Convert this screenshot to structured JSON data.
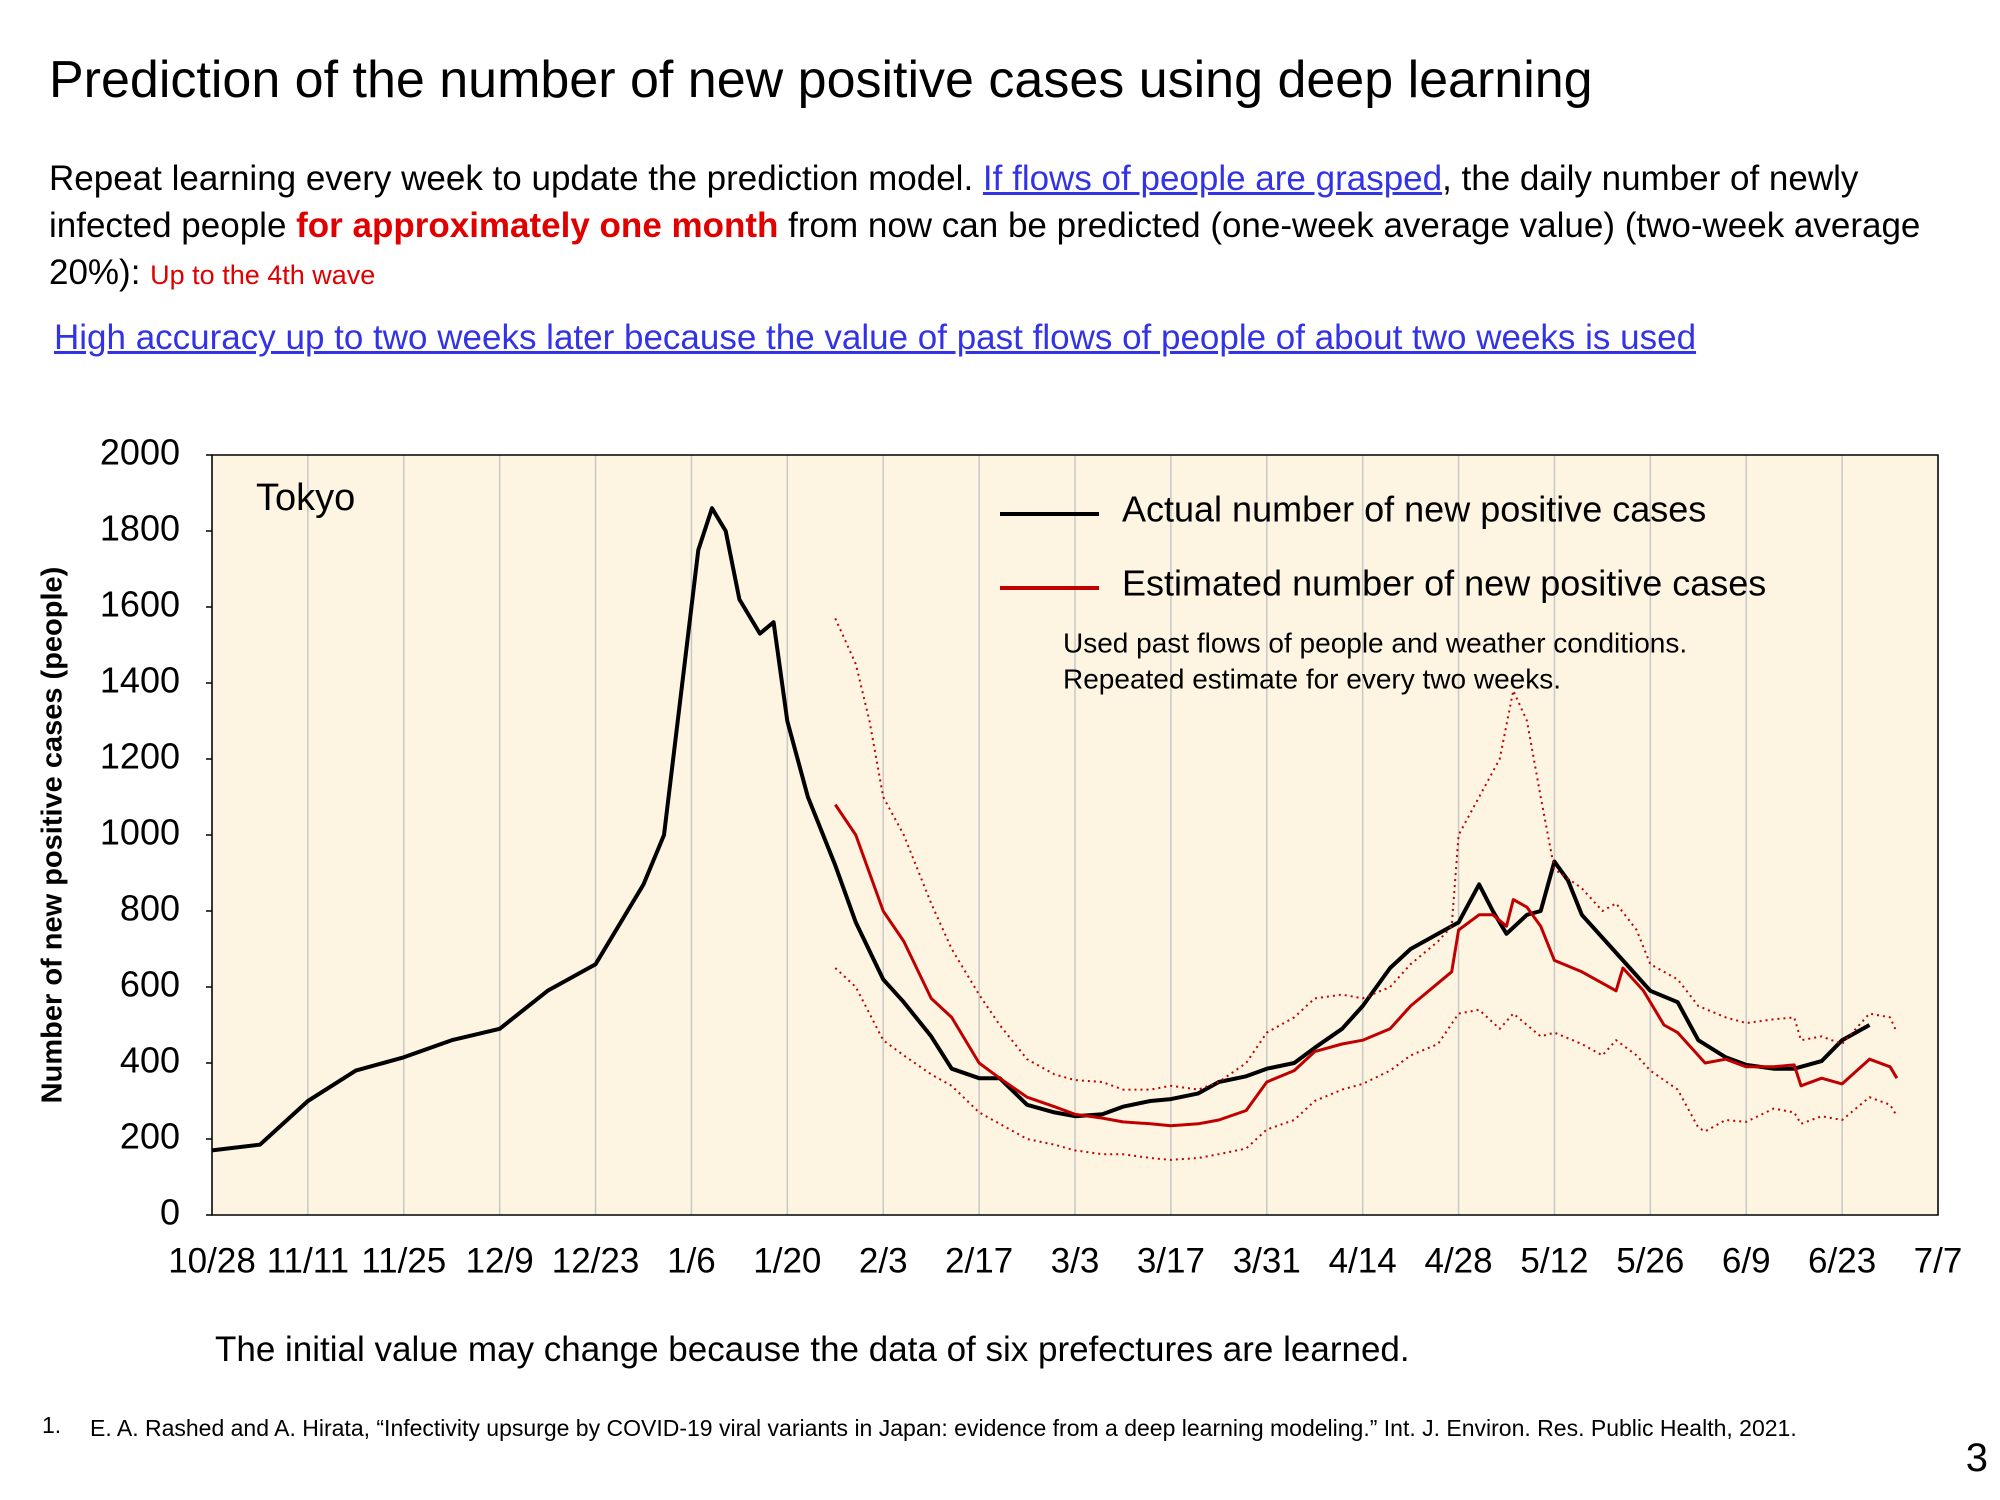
{
  "title": "Prediction of the number of new positive cases using deep learning",
  "intro": [
    "Repeat learning every week to update the prediction model. ",
    "If flows of people are grasped",
    ", the daily number of newly infected people ",
    "for approximately one month",
    " from now can be predicted (one-week average value) (two-week average 20%): ",
    "Up to the 4th wave"
  ],
  "link": "High accuracy up to two weeks later because the value of past flows of people of about two weeks is used",
  "caption": "The initial value may change because the data of six prefectures are learned.",
  "footnote": {
    "number": "1.",
    "text": "E. A. Rashed and A. Hirata, “Infectivity upsurge by COVID-19 viral variants in Japan: evidence from a deep learning modeling.” Int. J. Environ. Res. Public Health, 2021."
  },
  "page_number": "3",
  "chart_data": {
    "type": "line",
    "ylabel": "Number of new positive cases (people)",
    "annotations": [
      "Tokyo",
      "Used past flows of people and weather conditions.",
      "Repeated estimate for every two weeks."
    ],
    "xticks": [
      "10/28",
      "11/11",
      "11/25",
      "12/9",
      "12/23",
      "1/6",
      "1/20",
      "2/3",
      "2/17",
      "3/3",
      "3/17",
      "3/31",
      "4/14",
      "4/28",
      "5/12",
      "5/26",
      "6/9",
      "6/23",
      "7/7"
    ],
    "xlim": [
      "10/28",
      "7/7"
    ],
    "ylim": [
      0,
      2000
    ],
    "yticks": [
      0,
      200,
      400,
      600,
      800,
      1000,
      1200,
      1400,
      1600,
      1800,
      2000
    ],
    "grid": "x",
    "background": "#fdf5e1",
    "series": [
      {
        "name": "Actual number of new positive cases",
        "color": "#000000",
        "style": "solid",
        "x": [
          "10/28",
          "11/4",
          "11/11",
          "11/18",
          "11/25",
          "12/2",
          "12/9",
          "12/16",
          "12/23",
          "12/30",
          "1/2",
          "1/5",
          "1/7",
          "1/9",
          "1/11",
          "1/13",
          "1/16",
          "1/18",
          "1/20",
          "1/23",
          "1/27",
          "1/30",
          "2/3",
          "2/6",
          "2/10",
          "2/13",
          "2/17",
          "2/20",
          "2/24",
          "2/28",
          "3/3",
          "3/7",
          "3/10",
          "3/14",
          "3/17",
          "3/21",
          "3/24",
          "3/28",
          "3/31",
          "4/4",
          "4/7",
          "4/11",
          "4/14",
          "4/18",
          "4/21",
          "4/25",
          "4/28",
          "5/1",
          "5/3",
          "5/5",
          "5/8",
          "5/10",
          "5/12",
          "5/14",
          "5/16",
          "5/19",
          "5/23",
          "5/26",
          "5/30",
          "6/2",
          "6/6",
          "6/9",
          "6/13",
          "6/16",
          "6/20",
          "6/23",
          "6/27"
        ],
        "values": [
          170,
          185,
          300,
          380,
          415,
          460,
          490,
          590,
          660,
          870,
          1000,
          1450,
          1750,
          1860,
          1800,
          1620,
          1530,
          1560,
          1300,
          1100,
          920,
          770,
          620,
          560,
          470,
          385,
          360,
          360,
          290,
          270,
          260,
          265,
          285,
          300,
          305,
          320,
          350,
          365,
          385,
          400,
          440,
          490,
          550,
          650,
          700,
          740,
          770,
          870,
          800,
          740,
          790,
          800,
          930,
          880,
          790,
          730,
          650,
          590,
          560,
          460,
          415,
          395,
          385,
          385,
          405,
          460,
          500
        ]
      },
      {
        "name": "Estimated number of new positive cases",
        "color": "#c00000",
        "style": "solid",
        "x": [
          "1/27",
          "1/30",
          "2/3",
          "2/6",
          "2/10",
          "2/13",
          "2/17",
          "2/20",
          "2/24",
          "2/28",
          "3/3",
          "3/7",
          "3/10",
          "3/14",
          "3/17",
          "3/21",
          "3/24",
          "3/28",
          "3/31",
          "4/4",
          "4/7",
          "4/11",
          "4/14",
          "4/18",
          "4/21",
          "4/25",
          "4/27",
          "4/28",
          "5/1",
          "5/3",
          "5/5",
          "5/6",
          "5/8",
          "5/10",
          "5/12",
          "5/16",
          "5/19",
          "5/21",
          "5/22",
          "5/25",
          "5/28",
          "5/30",
          "6/3",
          "6/6",
          "6/9",
          "6/13",
          "6/16",
          "6/17",
          "6/20",
          "6/23",
          "6/27",
          "6/30",
          "7/1"
        ],
        "values": [
          1080,
          1000,
          800,
          720,
          570,
          520,
          400,
          360,
          310,
          285,
          265,
          255,
          245,
          240,
          235,
          240,
          250,
          275,
          350,
          380,
          430,
          450,
          460,
          490,
          550,
          610,
          640,
          750,
          790,
          790,
          760,
          830,
          810,
          760,
          670,
          640,
          610,
          590,
          650,
          590,
          500,
          480,
          400,
          410,
          390,
          390,
          395,
          340,
          360,
          345,
          410,
          390,
          360
        ]
      },
      {
        "color": "#c00000",
        "style": "dotted",
        "x": [
          "1/27",
          "1/30",
          "2/1",
          "2/3",
          "2/6",
          "2/10",
          "2/13",
          "2/17",
          "2/20",
          "2/24",
          "2/28",
          "3/3",
          "3/7",
          "3/10",
          "3/14",
          "3/17",
          "3/21",
          "3/24",
          "3/28",
          "3/31",
          "4/4",
          "4/7",
          "4/11",
          "4/14",
          "4/18",
          "4/21",
          "4/25",
          "4/27",
          "4/28",
          "5/1",
          "5/4",
          "5/6",
          "5/8",
          "5/10",
          "5/12",
          "5/16",
          "5/19",
          "5/21",
          "5/24",
          "5/26",
          "5/30",
          "6/2",
          "6/6",
          "6/9",
          "6/13",
          "6/16",
          "6/17",
          "6/20",
          "6/23",
          "6/27",
          "6/30",
          "7/1"
        ],
        "values": [
          1570,
          1450,
          1300,
          1100,
          1000,
          820,
          700,
          580,
          500,
          410,
          370,
          355,
          350,
          330,
          330,
          340,
          330,
          350,
          400,
          480,
          520,
          570,
          580,
          570,
          600,
          660,
          720,
          760,
          1000,
          1100,
          1200,
          1380,
          1300,
          1100,
          910,
          860,
          800,
          820,
          750,
          660,
          620,
          550,
          520,
          505,
          515,
          520,
          460,
          470,
          450,
          530,
          520,
          480
        ]
      },
      {
        "color": "#c00000",
        "style": "dotted",
        "x": [
          "1/27",
          "1/30",
          "2/3",
          "2/6",
          "2/10",
          "2/13",
          "2/17",
          "2/20",
          "2/24",
          "2/28",
          "3/3",
          "3/7",
          "3/10",
          "3/14",
          "3/17",
          "3/21",
          "3/24",
          "3/28",
          "3/31",
          "4/4",
          "4/7",
          "4/11",
          "4/14",
          "4/18",
          "4/21",
          "4/25",
          "4/28",
          "5/1",
          "5/4",
          "5/6",
          "5/8",
          "5/10",
          "5/12",
          "5/16",
          "5/19",
          "5/21",
          "5/24",
          "5/26",
          "5/30",
          "6/2",
          "6/3",
          "6/6",
          "6/9",
          "6/13",
          "6/16",
          "6/17",
          "6/20",
          "6/23",
          "6/27",
          "6/30",
          "7/1"
        ],
        "values": [
          650,
          600,
          460,
          420,
          370,
          340,
          270,
          240,
          200,
          185,
          170,
          160,
          160,
          150,
          145,
          150,
          160,
          175,
          225,
          250,
          300,
          330,
          345,
          380,
          420,
          450,
          530,
          540,
          490,
          530,
          500,
          470,
          480,
          450,
          420,
          460,
          420,
          380,
          330,
          230,
          220,
          250,
          245,
          280,
          270,
          240,
          260,
          250,
          310,
          290,
          260
        ]
      }
    ]
  }
}
